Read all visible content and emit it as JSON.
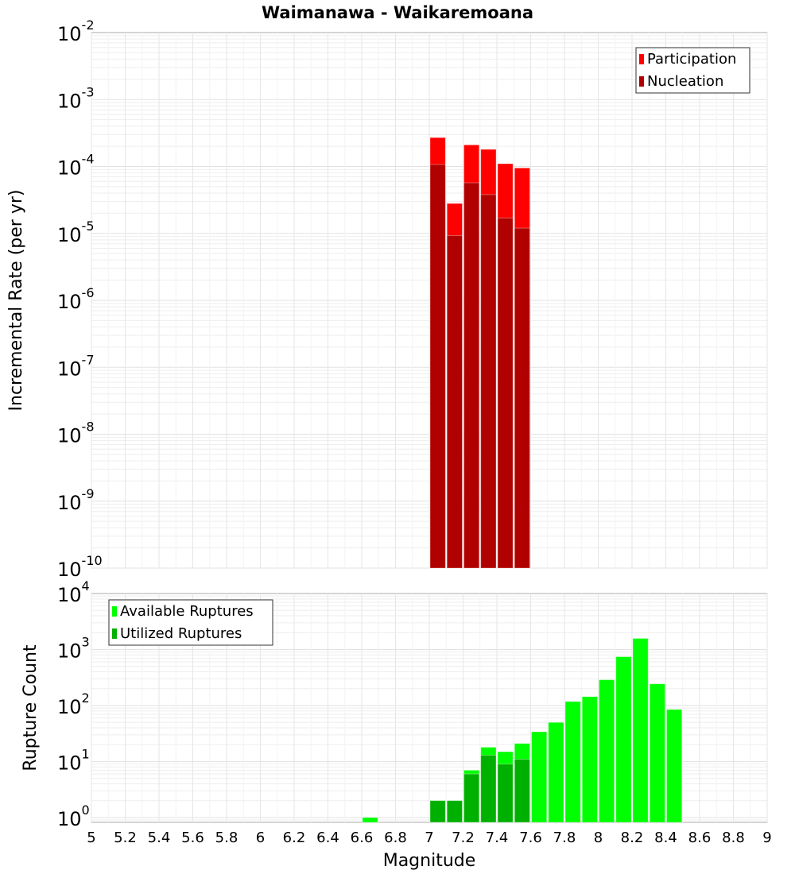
{
  "chart_data": [
    {
      "type": "bar",
      "title": "Waimanawa - Waikaremoana",
      "xlabel": "Magnitude",
      "ylabel": "Incremental Rate (per yr)",
      "yscale": "log",
      "ylim": [
        1e-10,
        0.01
      ],
      "xlim": [
        5,
        9
      ],
      "grid": true,
      "legend_position": "top-right",
      "x": [
        7.05,
        7.15,
        7.25,
        7.35,
        7.45,
        7.55
      ],
      "series": [
        {
          "name": "Participation",
          "color": "#ff0000",
          "values": [
            0.00027,
            2.8e-05,
            0.00021,
            0.00018,
            0.00011,
            9.5e-05
          ]
        },
        {
          "name": "Nucleation",
          "color": "#b00000",
          "values": [
            0.000107,
            9.3e-06,
            5.7e-05,
            3.8e-05,
            1.7e-05,
            1.2e-05
          ]
        }
      ],
      "ytick_exponents": [
        "-10",
        "-9",
        "-8",
        "-7",
        "-6",
        "-5",
        "-4",
        "-3",
        "-2"
      ]
    },
    {
      "type": "bar",
      "xlabel": "Magnitude",
      "ylabel": "Rupture Count",
      "yscale": "log",
      "ylim": [
        0.82,
        10000
      ],
      "xlim": [
        5,
        9
      ],
      "grid": true,
      "legend_position": "top-left",
      "x": [
        6.65,
        7.05,
        7.15,
        7.25,
        7.35,
        7.45,
        7.55,
        7.65,
        7.75,
        7.85,
        7.95,
        8.05,
        8.15,
        8.25,
        8.35,
        8.45
      ],
      "series": [
        {
          "name": "Available Ruptures",
          "color": "#00ff00",
          "values": [
            1,
            2,
            2,
            7,
            18,
            15,
            21,
            34,
            50,
            118,
            144,
            288,
            745,
            1580,
            244,
            85
          ]
        },
        {
          "name": "Utilized Ruptures",
          "color": "#00b000",
          "values": [
            0,
            2,
            2,
            6,
            13,
            9,
            11,
            0,
            0,
            0,
            0,
            0,
            0,
            0,
            0,
            0
          ]
        }
      ],
      "ytick_exponents": [
        "0",
        "1",
        "2",
        "3",
        "4"
      ],
      "xticks": [
        "5",
        "5.2",
        "5.4",
        "5.6",
        "5.8",
        "6",
        "6.2",
        "6.4",
        "6.6",
        "6.8",
        "7",
        "7.2",
        "7.4",
        "7.6",
        "7.8",
        "8",
        "8.2",
        "8.4",
        "8.6",
        "8.8",
        "9"
      ]
    }
  ]
}
